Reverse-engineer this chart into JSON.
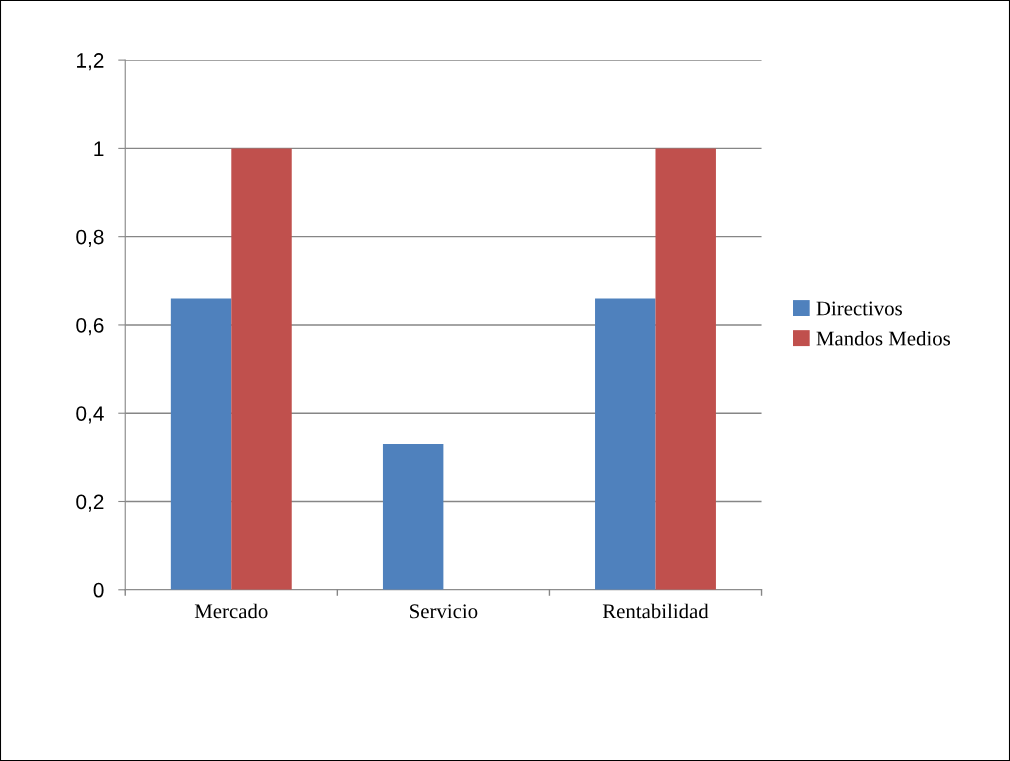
{
  "chart_data": {
    "type": "bar",
    "categories": [
      "Mercado",
      "Servicio",
      "Rentabilidad"
    ],
    "series": [
      {
        "name": "Directivos",
        "color": "#4f81bd",
        "values": [
          0.66,
          0.33,
          0.66
        ]
      },
      {
        "name": "Mandos Medios",
        "color": "#c0504d",
        "values": [
          1,
          0,
          1
        ]
      }
    ],
    "ylim": [
      0,
      1.2
    ],
    "yticks": [
      {
        "value": 0,
        "label": "0"
      },
      {
        "value": 0.2,
        "label": "0,2"
      },
      {
        "value": 0.4,
        "label": "0,4"
      },
      {
        "value": 0.6,
        "label": "0,6"
      },
      {
        "value": 0.8,
        "label": "0,8"
      },
      {
        "value": 1,
        "label": "1"
      },
      {
        "value": 1.2,
        "label": "1,2"
      }
    ],
    "grid": "y",
    "legend": "right"
  }
}
